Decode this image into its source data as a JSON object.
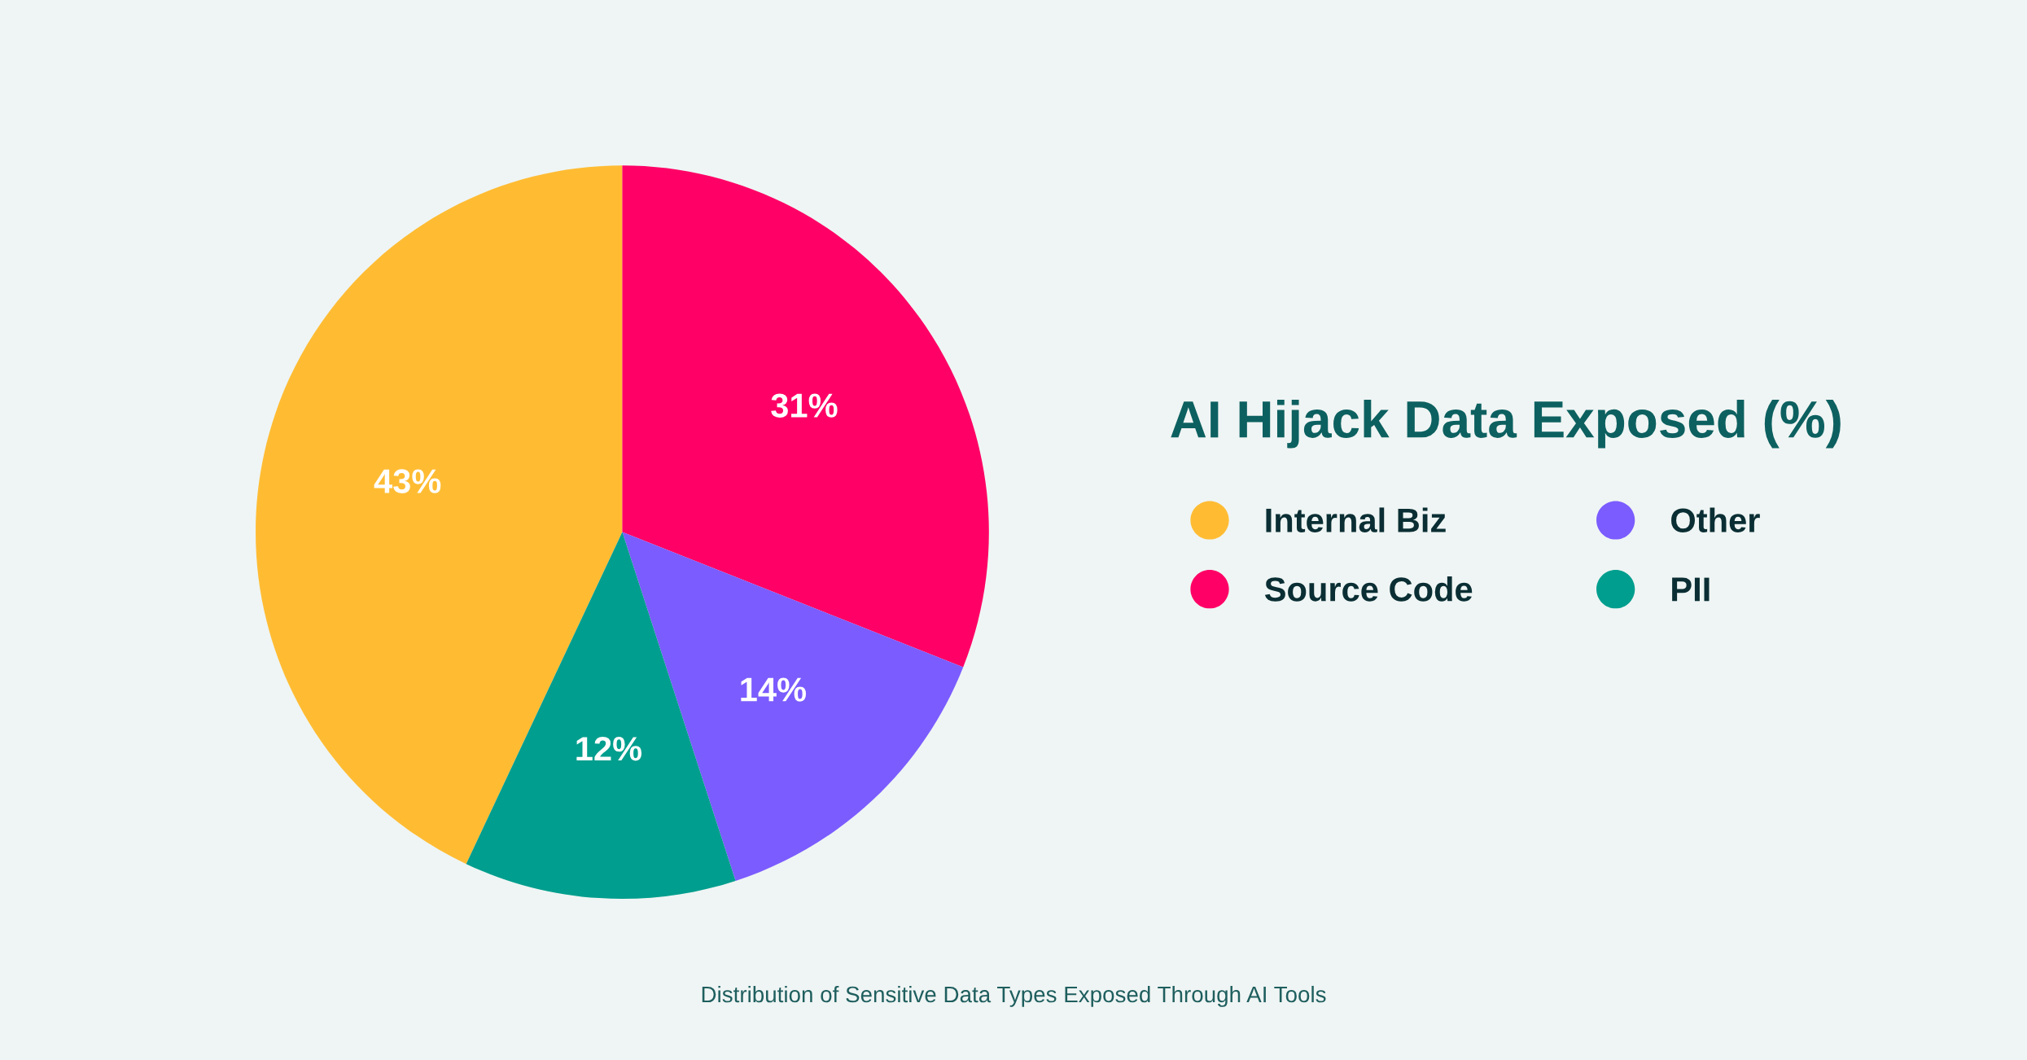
{
  "chart_data": {
    "type": "pie",
    "title": "AI Hijack Data Exposed (%)",
    "categories": [
      "Internal Biz",
      "Source Code",
      "Other",
      "PII"
    ],
    "values": [
      43,
      31,
      14,
      12
    ],
    "colors": [
      "#ffbc33",
      "#ff0066",
      "#7b5cff",
      "#009e8e"
    ],
    "value_labels": [
      "43%",
      "31%",
      "14%",
      "12%"
    ],
    "legend": "right",
    "annotations": [
      "Distribution of Sensitive Data Types Exposed Through AI Tools"
    ]
  }
}
